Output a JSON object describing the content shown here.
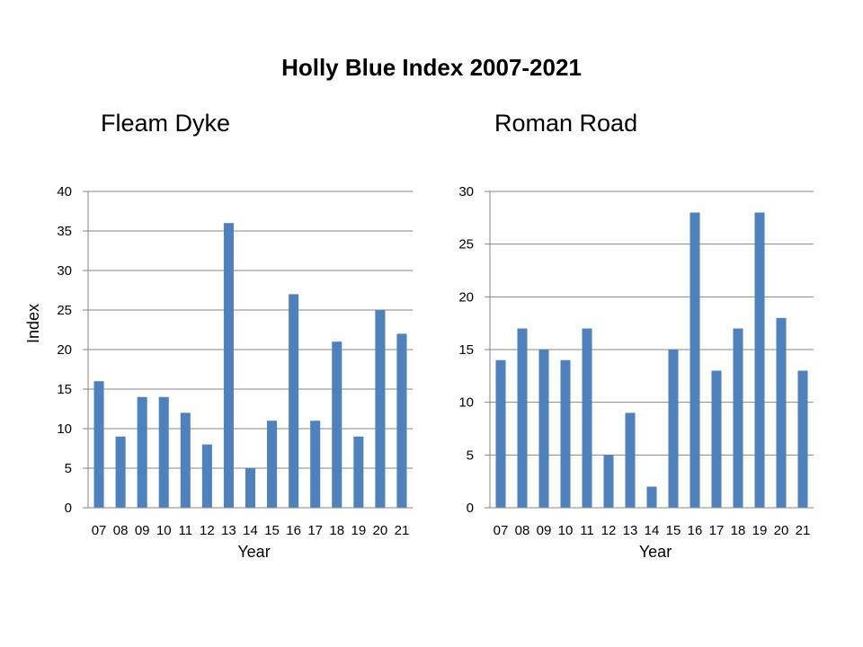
{
  "title": "Holly Blue Index 2007-2021",
  "colors": {
    "bar": "#4F81BD",
    "grid": "#868686"
  },
  "chart_data": [
    {
      "type": "bar",
      "title": "Fleam Dyke",
      "categories": [
        "07",
        "08",
        "09",
        "10",
        "11",
        "12",
        "13",
        "14",
        "15",
        "16",
        "17",
        "18",
        "19",
        "20",
        "21"
      ],
      "series": [
        {
          "values": [
            16,
            9,
            14,
            14,
            12,
            8,
            36,
            5,
            11,
            27,
            11,
            21,
            9,
            25,
            22
          ]
        }
      ],
      "xlabel": "Year",
      "ylabel": "Index",
      "ylim": [
        0,
        40
      ],
      "yticks": [
        0,
        5,
        10,
        15,
        20,
        25,
        30,
        35,
        40
      ],
      "grid": true,
      "legend": "none"
    },
    {
      "type": "bar",
      "title": "Roman Road",
      "categories": [
        "07",
        "08",
        "09",
        "10",
        "11",
        "12",
        "13",
        "14",
        "15",
        "16",
        "17",
        "18",
        "19",
        "20",
        "21"
      ],
      "series": [
        {
          "values": [
            14,
            17,
            15,
            14,
            17,
            5,
            9,
            2,
            15,
            28,
            13,
            17,
            28,
            18,
            13
          ]
        }
      ],
      "xlabel": "Year",
      "ylabel": "",
      "ylim": [
        0,
        30
      ],
      "yticks": [
        0,
        5,
        10,
        15,
        20,
        25,
        30
      ],
      "grid": true,
      "legend": "none"
    }
  ]
}
